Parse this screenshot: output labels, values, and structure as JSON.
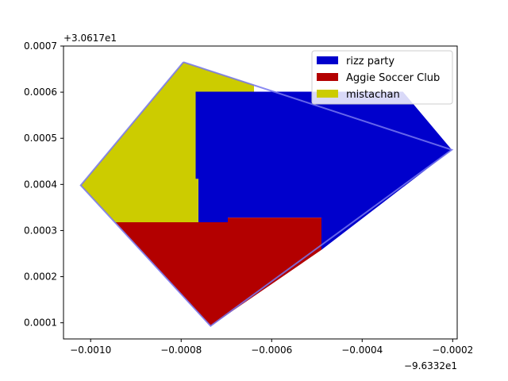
{
  "chart_data": {
    "type": "area",
    "title": "",
    "xlabel": "",
    "ylabel": "",
    "x_offset_label": "−9.6332e1",
    "y_offset_label": "+3.0617e1",
    "xlim": [
      -0.00106,
      -0.00019
    ],
    "ylim": [
      6.5e-05,
      0.0007
    ],
    "x_ticks": [
      -0.001,
      -0.0008,
      -0.0006,
      -0.0004,
      -0.0002
    ],
    "x_tick_labels": [
      "−0.0010",
      "−0.0008",
      "−0.0006",
      "−0.0004",
      "−0.0002"
    ],
    "y_ticks": [
      0.0001,
      0.0002,
      0.0003,
      0.0004,
      0.0005,
      0.0006,
      0.0007
    ],
    "y_tick_labels": [
      "0.0001",
      "0.0002",
      "0.0003",
      "0.0004",
      "0.0005",
      "0.0006",
      "0.0007"
    ],
    "grid": false,
    "legend_position": "top-right",
    "boundary": {
      "color": "#7777ee",
      "points": [
        [
          -0.000795,
          0.000665
        ],
        [
          -0.000202,
          0.000475
        ],
        [
          -0.000735,
          9.3e-05
        ],
        [
          -0.001022,
          0.000398
        ],
        [
          -0.000795,
          0.000665
        ]
      ]
    },
    "series": [
      {
        "name": "rizz party",
        "color": "#0000cc",
        "polygon": [
          [
            -0.000768,
            0.000601
          ],
          [
            -0.00031,
            0.000601
          ],
          [
            -0.000202,
            0.000475
          ],
          [
            -0.00049,
            0.000258
          ],
          [
            -0.00049,
            0.000328
          ],
          [
            -0.000697,
            0.000328
          ],
          [
            -0.000697,
            0.000318
          ],
          [
            -0.000762,
            0.000318
          ],
          [
            -0.000762,
            0.000412
          ],
          [
            -0.000768,
            0.000412
          ]
        ]
      },
      {
        "name": "Aggie Soccer Club",
        "color": "#b30000",
        "polygon": [
          [
            -0.000946,
            0.000318
          ],
          [
            -0.000697,
            0.000318
          ],
          [
            -0.000697,
            0.000328
          ],
          [
            -0.00049,
            0.000328
          ],
          [
            -0.00049,
            0.000258
          ],
          [
            -0.000735,
            9.3e-05
          ]
        ]
      },
      {
        "name": "mistachan",
        "color": "#cccc00",
        "polygon": [
          [
            -0.000795,
            0.000665
          ],
          [
            -0.000639,
            0.000616
          ],
          [
            -0.000639,
            0.000601
          ],
          [
            -0.000768,
            0.000601
          ],
          [
            -0.000768,
            0.000412
          ],
          [
            -0.000762,
            0.000412
          ],
          [
            -0.000762,
            0.000318
          ],
          [
            -0.000946,
            0.000318
          ],
          [
            -0.001022,
            0.000398
          ]
        ]
      }
    ]
  }
}
